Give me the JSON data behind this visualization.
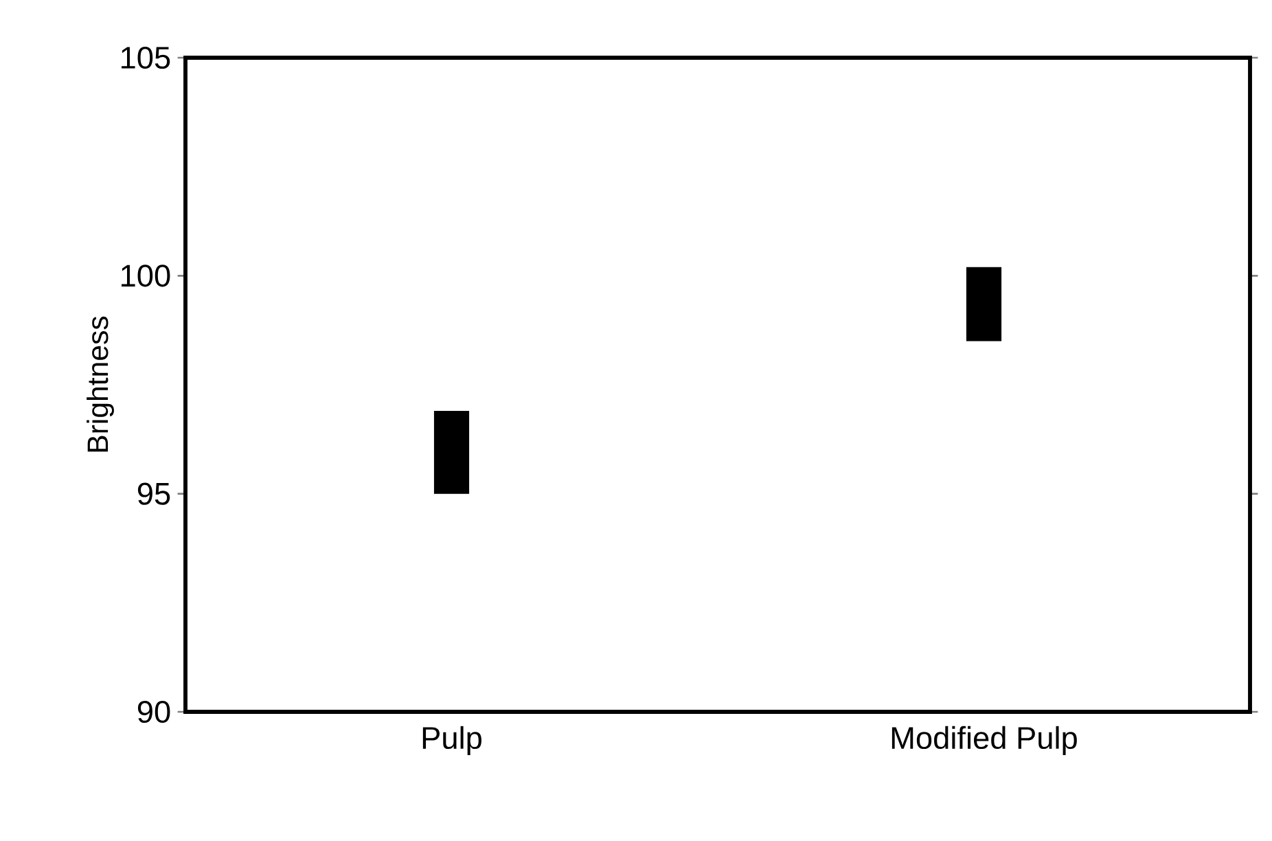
{
  "chart_data": {
    "type": "bar",
    "ylabel": "Brightness",
    "categories": [
      "Pulp",
      "Modified Pulp"
    ],
    "base": [
      95,
      98.5
    ],
    "values": [
      1.9,
      1.7
    ],
    "color": "#000000",
    "ylim": [
      90,
      105
    ],
    "yticks": [
      90,
      95,
      100,
      105
    ]
  }
}
